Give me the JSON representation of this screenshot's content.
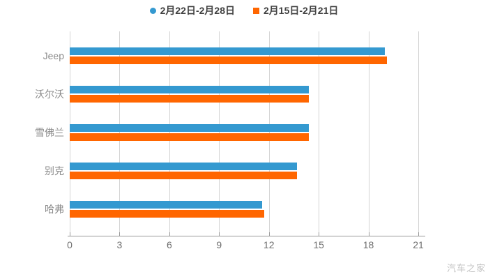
{
  "chart_data": {
    "type": "bar",
    "orientation": "horizontal",
    "title": "",
    "categories": [
      "Jeep",
      "沃尔沃",
      "雪佛兰",
      "别克",
      "哈弗"
    ],
    "series": [
      {
        "name": "2月22日-2月28日",
        "color": "#3499d0",
        "marker": "circle",
        "values": [
          19.0,
          14.4,
          14.4,
          13.7,
          11.6
        ]
      },
      {
        "name": "2月15日-2月21日",
        "color": "#ff6600",
        "marker": "square",
        "values": [
          19.1,
          14.4,
          14.4,
          13.7,
          11.7
        ]
      }
    ],
    "xlim": [
      0,
      21
    ],
    "xticks": [
      0,
      3,
      6,
      9,
      12,
      15,
      18,
      21
    ],
    "grid": true,
    "legend_position": "top",
    "xlabel": "",
    "ylabel": ""
  },
  "watermark": "汽车之家"
}
